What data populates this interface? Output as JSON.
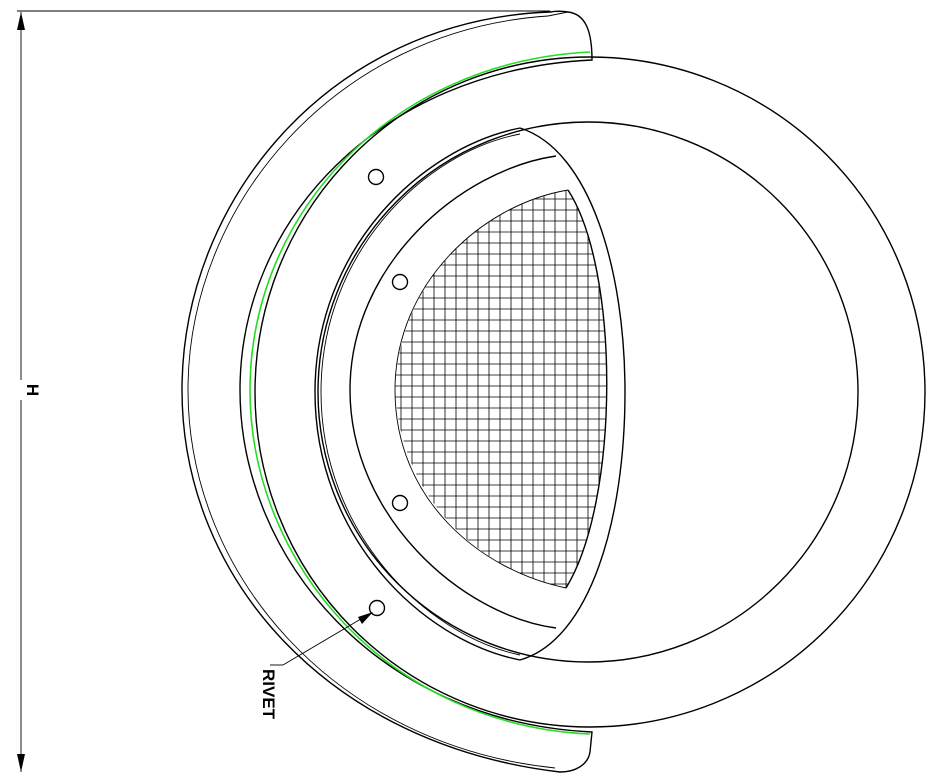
{
  "dimension": {
    "label": "H"
  },
  "callout": {
    "label": "RIVET"
  },
  "colors": {
    "gasket": "#22dd22",
    "line": "#000000"
  },
  "rivets": {
    "count": 4
  },
  "mesh": {
    "pattern": "square-grid"
  }
}
